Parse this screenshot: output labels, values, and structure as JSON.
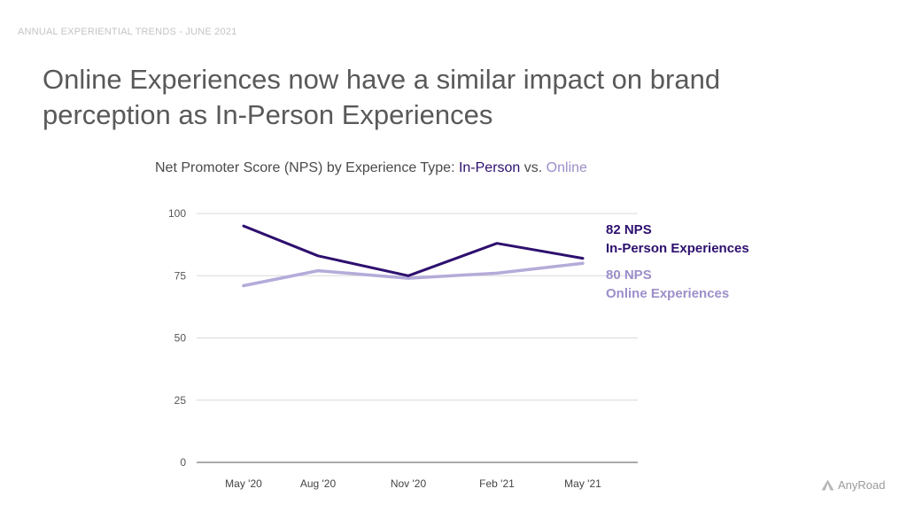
{
  "header": {
    "tag": "ANNUAL EXPERIENTIAL TRENDS - JUNE 2021",
    "headline": "Online Experiences now have a similar impact on brand perception as In-Person Experiences"
  },
  "chart_data": {
    "type": "line",
    "title_prefix": "Net Promoter Score (NPS) by Experience Type: ",
    "title_series1": "In-Person",
    "title_sep": " vs. ",
    "title_series2": "Online",
    "categories": [
      "May '20",
      "Aug '20",
      "Nov '20",
      "Feb '21",
      "May '21"
    ],
    "y_ticks": [
      0,
      25,
      50,
      75,
      100
    ],
    "ylim": [
      0,
      100
    ],
    "grid": true,
    "series": [
      {
        "name": "In-Person Experiences",
        "values": [
          95,
          83,
          75,
          88,
          82
        ],
        "color": "#2d0f6e",
        "end_value_label": "82 NPS",
        "end_name_label": "In-Person Experiences"
      },
      {
        "name": "Online Experiences",
        "values": [
          71,
          77,
          74,
          76,
          80
        ],
        "color": "#b5abd9",
        "end_value_label": "80 NPS",
        "end_name_label": "Online Experiences"
      }
    ]
  },
  "brand": {
    "name": "AnyRoad",
    "icon": "anyroad-logo-icon"
  }
}
